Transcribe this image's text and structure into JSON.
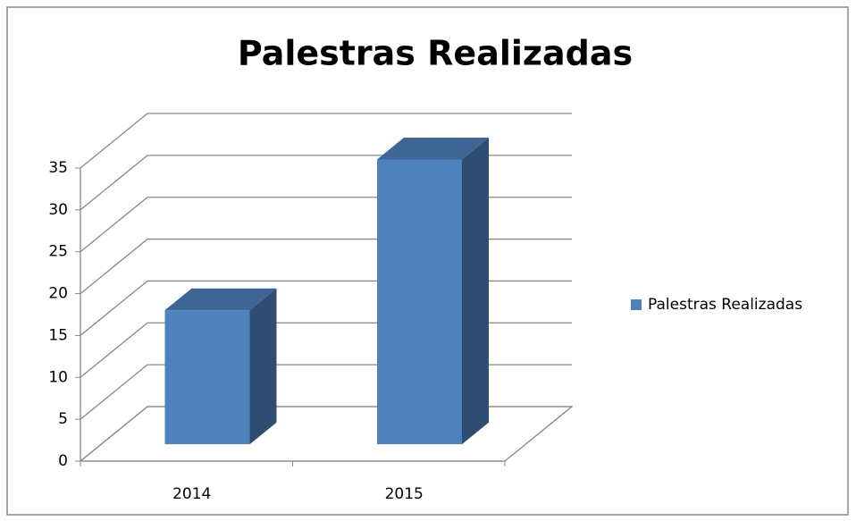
{
  "chart_data": {
    "type": "bar3d",
    "title": "Palestras Realizadas",
    "categories": [
      "2014",
      "2015"
    ],
    "series": [
      {
        "name": "Palestras Realizadas",
        "color": "#4f81bd",
        "values": [
          16,
          34
        ]
      }
    ],
    "ylim": [
      0,
      35
    ],
    "yticks": [
      0,
      5,
      10,
      15,
      20,
      25,
      30,
      35
    ],
    "grid": true,
    "legend": "right"
  }
}
